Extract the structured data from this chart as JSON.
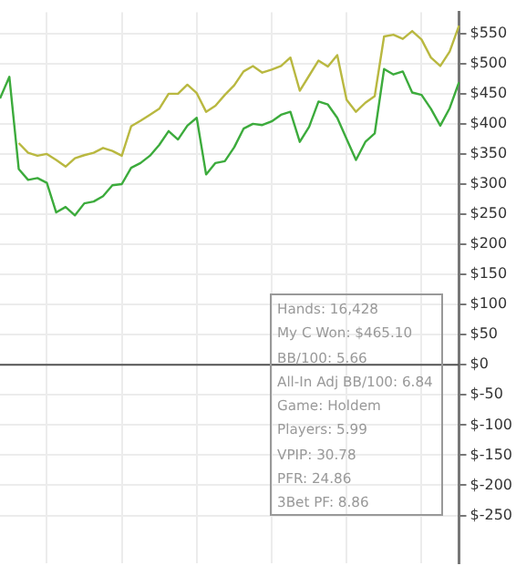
{
  "chart_data": {
    "type": "line",
    "categories": [
      null,
      null,
      null,
      null,
      null,
      null,
      null,
      null,
      null,
      null,
      null,
      null,
      null,
      null,
      null,
      null,
      null,
      null,
      null,
      null,
      null,
      null,
      null,
      null,
      null,
      null,
      null,
      null,
      null,
      null,
      null,
      null,
      null,
      null,
      null,
      null,
      null,
      null,
      null,
      null,
      null,
      null,
      null,
      null,
      null,
      null,
      null,
      null,
      null,
      null
    ],
    "series": [
      {
        "color": "#b9b840",
        "values": [
          null,
          null,
          368,
          352,
          347,
          350,
          340,
          329,
          343,
          348,
          352,
          360,
          355,
          347,
          396,
          405,
          415,
          425,
          450,
          450,
          465,
          451,
          420,
          430,
          448,
          464,
          487,
          496,
          485,
          490,
          496,
          510,
          455,
          480,
          505,
          495,
          514,
          440,
          420,
          435,
          446,
          545,
          548,
          541,
          554,
          540,
          510,
          496,
          520,
          563
        ]
      },
      {
        "color": "#3cab3c",
        "values": [
          442,
          478,
          325,
          307,
          310,
          302,
          253,
          262,
          248,
          268,
          271,
          280,
          298,
          300,
          327,
          335,
          347,
          365,
          388,
          374,
          397,
          410,
          316,
          335,
          338,
          361,
          392,
          400,
          398,
          404,
          415,
          420,
          370,
          395,
          437,
          432,
          410,
          375,
          340,
          370,
          384,
          491,
          482,
          487,
          452,
          448,
          425,
          397,
          426,
          469
        ]
      }
    ],
    "ylim": [
      -330,
      585
    ],
    "yticks": [
      {
        "value": -250,
        "label": "$-250"
      },
      {
        "value": -200,
        "label": "$-200"
      },
      {
        "value": -150,
        "label": "$-150"
      },
      {
        "value": -100,
        "label": "$-100"
      },
      {
        "value": -50,
        "label": "$-50"
      },
      {
        "value": 0,
        "label": "$0"
      },
      {
        "value": 50,
        "label": "$50"
      },
      {
        "value": 100,
        "label": "$100"
      },
      {
        "value": 150,
        "label": "$150"
      },
      {
        "value": 200,
        "label": "$200"
      },
      {
        "value": 250,
        "label": "$250"
      },
      {
        "value": 300,
        "label": "$300"
      },
      {
        "value": 350,
        "label": "$350"
      },
      {
        "value": 400,
        "label": "$400"
      },
      {
        "value": 450,
        "label": "$450"
      },
      {
        "value": 500,
        "label": "$500"
      },
      {
        "value": 550,
        "label": "$550"
      }
    ],
    "tick_labels": "y",
    "grid": true,
    "legend": false,
    "marker": "none",
    "line_style": "solid",
    "ref_lines": [
      {
        "axis": "y",
        "value": 0,
        "color": "#555555"
      }
    ],
    "annotations": [
      "Hands: 16,428",
      "My C Won: $465.10",
      "BB/100: 5.66",
      "All-In Adj BB/100: 6.84",
      "Game: Holdem",
      "Players: 5.99",
      "VPIP: 30.78",
      "PFR: 24.86",
      "3Bet PF: 8.86"
    ]
  }
}
